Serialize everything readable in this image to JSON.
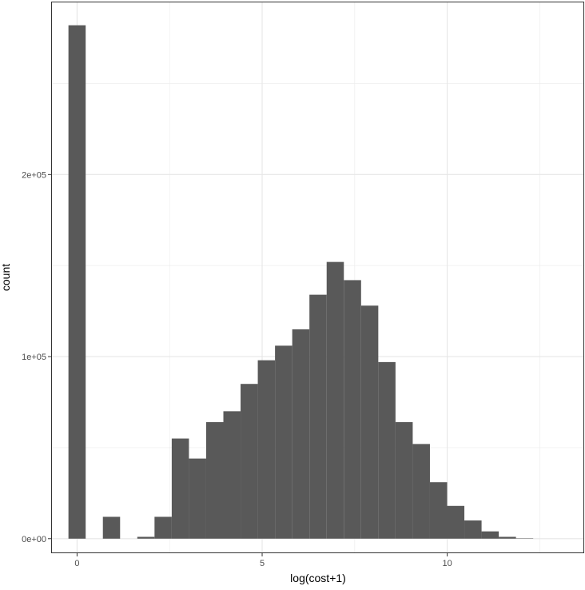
{
  "chart_data": {
    "type": "bar",
    "subtype": "histogram",
    "title": "",
    "xlabel": "log(cost+1)",
    "ylabel": "count",
    "xlim": [
      -0.7,
      13.7
    ],
    "ylim": [
      -8000,
      295000
    ],
    "x_ticks": [
      {
        "value": 0,
        "label": "0"
      },
      {
        "value": 5,
        "label": "5"
      },
      {
        "value": 10,
        "label": "10"
      }
    ],
    "y_ticks": [
      {
        "value": 0,
        "label": "0e+00"
      },
      {
        "value": 100000,
        "label": "1e+05"
      },
      {
        "value": 200000,
        "label": "2e+05"
      }
    ],
    "grid": true,
    "bar_color": "#595959",
    "bin_width": 0.465,
    "bins": [
      {
        "x": 0.0,
        "count": 282000
      },
      {
        "x": 0.465,
        "count": 0
      },
      {
        "x": 0.93,
        "count": 12000
      },
      {
        "x": 1.395,
        "count": 0
      },
      {
        "x": 1.86,
        "count": 1000
      },
      {
        "x": 2.325,
        "count": 12000
      },
      {
        "x": 2.79,
        "count": 55000
      },
      {
        "x": 3.255,
        "count": 44000
      },
      {
        "x": 3.72,
        "count": 64000
      },
      {
        "x": 4.185,
        "count": 70000
      },
      {
        "x": 4.65,
        "count": 85000
      },
      {
        "x": 5.115,
        "count": 98000
      },
      {
        "x": 5.58,
        "count": 106000
      },
      {
        "x": 6.045,
        "count": 115000
      },
      {
        "x": 6.51,
        "count": 134000
      },
      {
        "x": 6.975,
        "count": 152000
      },
      {
        "x": 7.44,
        "count": 142000
      },
      {
        "x": 7.905,
        "count": 128000
      },
      {
        "x": 8.37,
        "count": 97000
      },
      {
        "x": 8.835,
        "count": 64000
      },
      {
        "x": 9.3,
        "count": 52000
      },
      {
        "x": 9.765,
        "count": 31000
      },
      {
        "x": 10.23,
        "count": 18000
      },
      {
        "x": 10.695,
        "count": 10000
      },
      {
        "x": 11.16,
        "count": 4000
      },
      {
        "x": 11.625,
        "count": 1000
      },
      {
        "x": 12.09,
        "count": 200
      }
    ]
  }
}
